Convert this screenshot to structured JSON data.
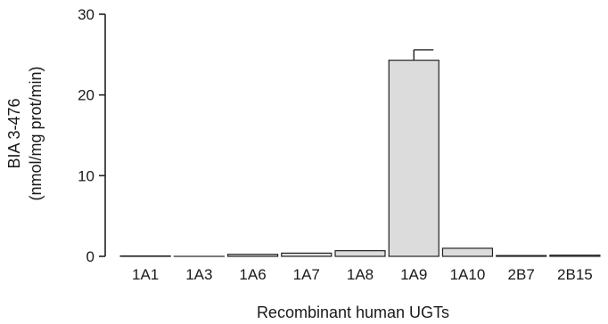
{
  "chart_data": {
    "type": "bar",
    "title": "",
    "xlabel": "Recombinant human UGTs",
    "ylabel_lines": [
      "BIA 3-476",
      "(nmol/mg prot/min)"
    ],
    "ylim": [
      0,
      30
    ],
    "yticks": [
      0,
      10,
      20,
      30
    ],
    "categories": [
      "1A1",
      "1A3",
      "1A6",
      "1A7",
      "1A8",
      "1A9",
      "1A10",
      "2B7",
      "2B15"
    ],
    "values": [
      0.05,
      0.0,
      0.25,
      0.4,
      0.7,
      24.3,
      1.0,
      0.1,
      0.15
    ],
    "errors": [
      0,
      0,
      0,
      0,
      0,
      1.3,
      0,
      0,
      0
    ],
    "bar_color": "#dcdcdc",
    "grid": false,
    "legend": "none"
  }
}
